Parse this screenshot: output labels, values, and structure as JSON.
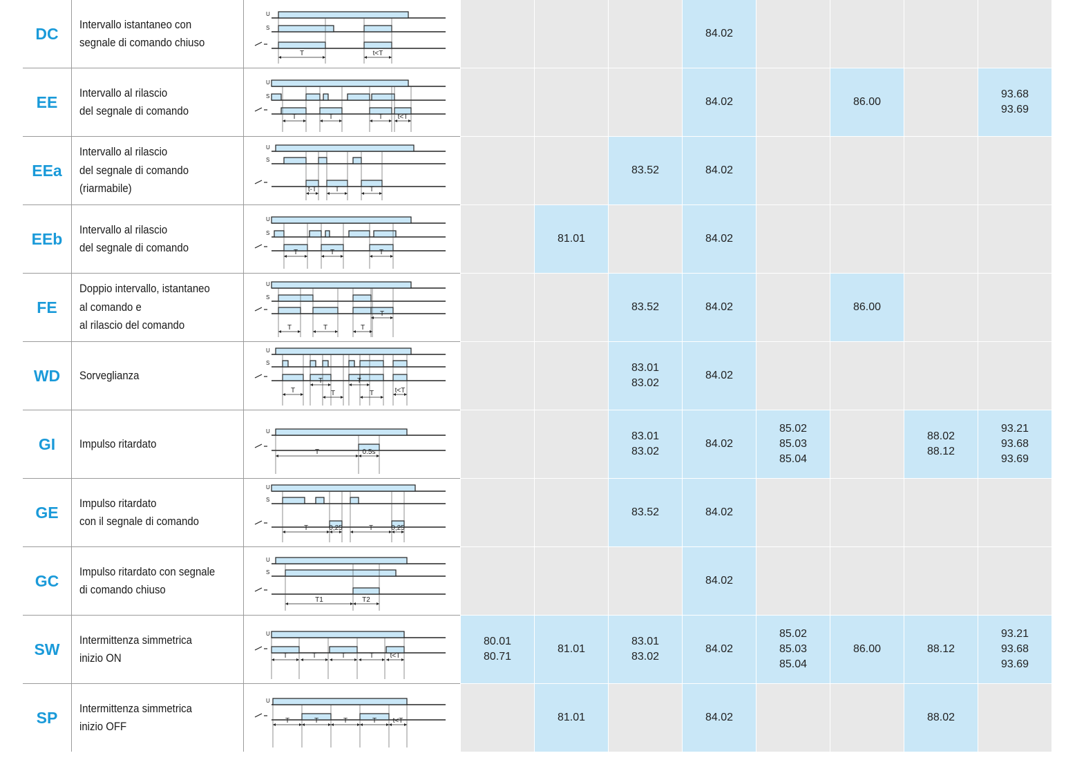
{
  "colors": {
    "accent": "#1a9ad9",
    "cell_filled": "#c9e7f7",
    "cell_empty": "#e8e8e8",
    "pulse": "#c9e7f7"
  },
  "rows": [
    {
      "code": "DC",
      "desc": [
        "Intervallo istantaneo con",
        "segnale di comando chiuso"
      ],
      "diagram_labels": [
        "T",
        "t<T"
      ],
      "cells": [
        [],
        [],
        [],
        [
          "84.02"
        ],
        [],
        [],
        [],
        []
      ]
    },
    {
      "code": "EE",
      "desc": [
        "Intervallo al rilascio",
        "del segnale di comando"
      ],
      "diagram_labels": [
        "T",
        "T",
        "T",
        "t<T"
      ],
      "cells": [
        [],
        [],
        [],
        [
          "84.02"
        ],
        [],
        [
          "86.00"
        ],
        [],
        [
          "93.68",
          "93.69"
        ]
      ]
    },
    {
      "code": "EEa",
      "desc": [
        "Intervallo al rilascio",
        "del segnale di comando",
        "(riarmabile)"
      ],
      "diagram_labels": [
        "t-T",
        "T",
        "T"
      ],
      "cells": [
        [],
        [],
        [
          "83.52"
        ],
        [
          "84.02"
        ],
        [],
        [],
        [],
        []
      ]
    },
    {
      "code": "EEb",
      "desc": [
        "Intervallo al rilascio",
        "del segnale di comando"
      ],
      "diagram_labels": [
        "T",
        "T",
        "T"
      ],
      "cells": [
        [],
        [
          "81.01"
        ],
        [],
        [
          "84.02"
        ],
        [],
        [],
        [],
        []
      ]
    },
    {
      "code": "FE",
      "desc": [
        "Doppio intervallo, istantaneo",
        "al comando e",
        "al rilascio del comando"
      ],
      "diagram_labels": [
        "T",
        "T",
        "T",
        "T"
      ],
      "cells": [
        [],
        [],
        [
          "83.52"
        ],
        [
          "84.02"
        ],
        [],
        [
          "86.00"
        ],
        [],
        []
      ]
    },
    {
      "code": "WD",
      "desc": [
        "Sorveglianza"
      ],
      "diagram_labels": [
        "T",
        "T",
        "T",
        "T",
        "T",
        "T",
        "t<T"
      ],
      "cells": [
        [],
        [],
        [
          "83.01",
          "83.02"
        ],
        [
          "84.02"
        ],
        [],
        [],
        [],
        []
      ]
    },
    {
      "code": "GI",
      "desc": [
        "Impulso ritardato"
      ],
      "diagram_labels": [
        "T",
        "0.5s"
      ],
      "cells": [
        [],
        [],
        [
          "83.01",
          "83.02"
        ],
        [
          "84.02"
        ],
        [
          "85.02",
          "85.03",
          "85.04"
        ],
        [],
        [
          "88.02",
          "88.12"
        ],
        [
          "93.21",
          "93.68",
          "93.69"
        ]
      ]
    },
    {
      "code": "GE",
      "desc": [
        "Impulso ritardato",
        "con il segnale di comando"
      ],
      "diagram_labels": [
        "T",
        "0,25",
        "T",
        "0,25"
      ],
      "cells": [
        [],
        [],
        [
          "83.52"
        ],
        [
          "84.02"
        ],
        [],
        [],
        [],
        []
      ]
    },
    {
      "code": "GC",
      "desc": [
        "Impulso ritardato con segnale",
        "di comando chiuso"
      ],
      "diagram_labels": [
        "T1",
        "T2"
      ],
      "cells": [
        [],
        [],
        [],
        [
          "84.02"
        ],
        [],
        [],
        [],
        []
      ]
    },
    {
      "code": "SW",
      "desc": [
        "Intermittenza simmetrica",
        "inizio ON"
      ],
      "diagram_labels": [
        "T",
        "T",
        "T",
        "T",
        "t<T"
      ],
      "cells": [
        [
          "80.01",
          "80.71"
        ],
        [
          "81.01"
        ],
        [
          "83.01",
          "83.02"
        ],
        [
          "84.02"
        ],
        [
          "85.02",
          "85.03",
          "85.04"
        ],
        [
          "86.00"
        ],
        [
          "88.12"
        ],
        [
          "93.21",
          "93.68",
          "93.69"
        ]
      ]
    },
    {
      "code": "SP",
      "desc": [
        "Intermittenza simmetrica",
        "inizio OFF"
      ],
      "diagram_labels": [
        "T",
        "T",
        "T",
        "T",
        "t<T"
      ],
      "cells": [
        [],
        [
          "81.01"
        ],
        [],
        [
          "84.02"
        ],
        [],
        [],
        [
          "88.02"
        ],
        []
      ]
    }
  ]
}
